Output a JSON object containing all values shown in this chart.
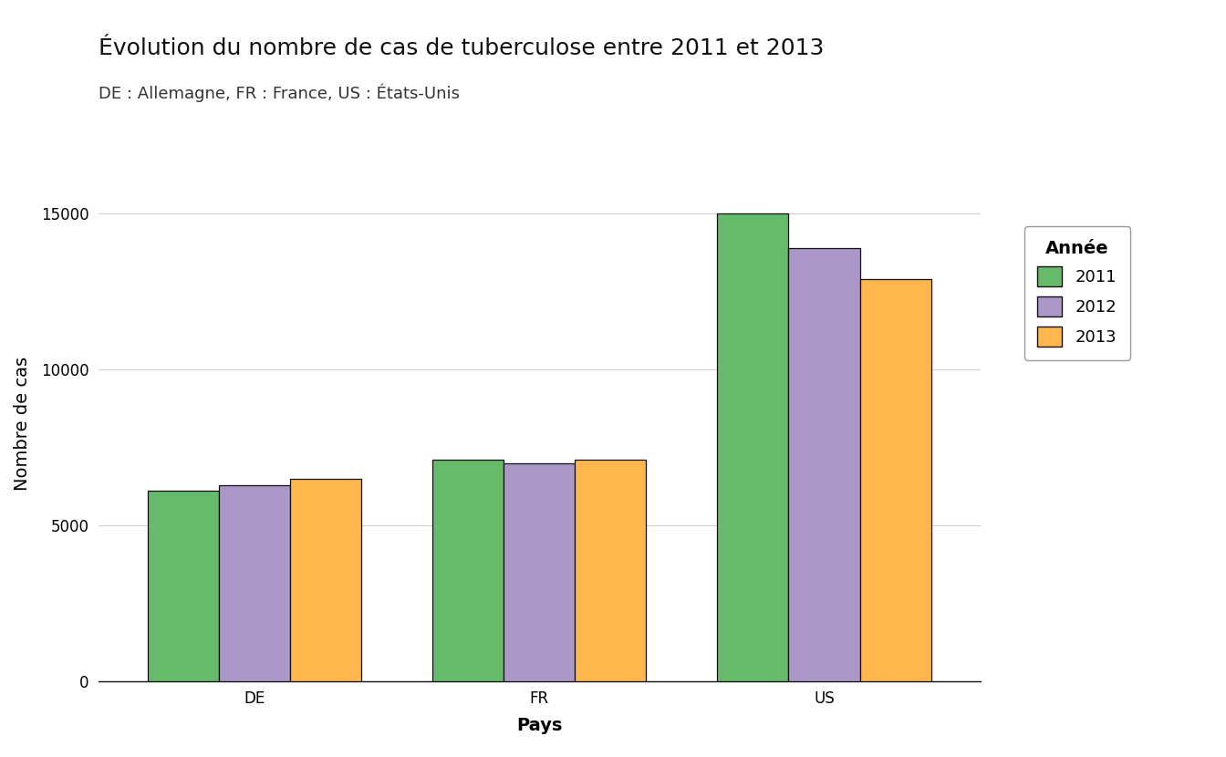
{
  "title": "Évolution du nombre de cas de tuberculose entre 2011 et 2013",
  "subtitle": "DE : Allemagne, FR : France, US : États-Unis",
  "xlabel": "Pays",
  "ylabel": "Nombre de cas",
  "categories": [
    "DE",
    "FR",
    "US"
  ],
  "years": [
    "2011",
    "2012",
    "2013"
  ],
  "values": {
    "DE": [
      6100,
      6300,
      6500
    ],
    "FR": [
      7100,
      7000,
      7100
    ],
    "US": [
      15000,
      13900,
      12900
    ]
  },
  "colors": [
    "#66bb6a",
    "#ab97c8",
    "#ffb74d"
  ],
  "bar_edge_color": "#111111",
  "background_color": "#ffffff",
  "grid_color": "#d0d0d0",
  "ylim": [
    0,
    16500
  ],
  "yticks": [
    0,
    5000,
    10000,
    15000
  ],
  "legend_title": "Année",
  "title_fontsize": 18,
  "subtitle_fontsize": 13,
  "axis_label_fontsize": 14,
  "tick_fontsize": 12,
  "legend_fontsize": 13
}
